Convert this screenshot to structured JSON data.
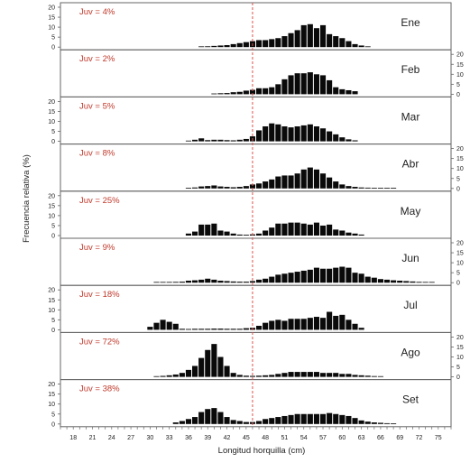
{
  "chart_data": [
    {
      "type": "bar",
      "panel_label": "Ene",
      "annotation": "Juv = 4%",
      "yticks": [
        "20",
        "15",
        "10",
        "5",
        "0"
      ],
      "ylim": [
        0,
        20
      ],
      "x": [
        38,
        39,
        40,
        41,
        42,
        43,
        44,
        45,
        46,
        47,
        48,
        49,
        50,
        51,
        52,
        53,
        54,
        55,
        56,
        57,
        58,
        59,
        60,
        61,
        62,
        63,
        64
      ],
      "values": [
        0.2,
        0.4,
        0.6,
        0.8,
        1.0,
        1.5,
        2.0,
        2.5,
        3.0,
        3.5,
        3.5,
        4.0,
        4.5,
        5.5,
        7.0,
        8.5,
        11.0,
        11.5,
        9.5,
        11.0,
        6.5,
        5.5,
        4.5,
        3.0,
        1.5,
        0.8,
        0.3
      ]
    },
    {
      "type": "bar",
      "panel_label": "Feb",
      "annotation": "Juv = 2%",
      "yticks": [
        "20",
        "15",
        "10",
        "5",
        "0"
      ],
      "ylim": [
        0,
        20
      ],
      "x": [
        40,
        41,
        42,
        43,
        44,
        45,
        46,
        47,
        48,
        49,
        50,
        51,
        52,
        53,
        54,
        55,
        56,
        57,
        58,
        59,
        60,
        61,
        62
      ],
      "values": [
        0.3,
        0.5,
        0.6,
        1.0,
        1.2,
        1.8,
        2.2,
        3.0,
        3.0,
        3.5,
        5.0,
        7.5,
        9.5,
        10.5,
        10.5,
        11.0,
        10.0,
        9.5,
        7.0,
        3.5,
        2.5,
        2.0,
        1.5
      ]
    },
    {
      "type": "bar",
      "panel_label": "Mar",
      "annotation": "Juv = 5%",
      "yticks": [
        "20",
        "15",
        "10",
        "5",
        "0"
      ],
      "ylim": [
        0,
        20
      ],
      "x": [
        36,
        37,
        38,
        39,
        40,
        41,
        42,
        43,
        44,
        45,
        46,
        47,
        48,
        49,
        50,
        51,
        52,
        53,
        54,
        55,
        56,
        57,
        58,
        59,
        60,
        61,
        62
      ],
      "values": [
        0.3,
        0.8,
        1.5,
        0.6,
        0.8,
        0.8,
        0.6,
        0.5,
        0.8,
        1.2,
        2.5,
        5.5,
        7.5,
        9.0,
        8.5,
        7.5,
        7.0,
        7.5,
        8.0,
        8.5,
        7.5,
        6.5,
        5.0,
        3.5,
        2.0,
        1.0,
        0.5
      ]
    },
    {
      "type": "bar",
      "panel_label": "Abr",
      "annotation": "Juv = 8%",
      "yticks": [
        "20",
        "15",
        "10",
        "5",
        "0"
      ],
      "ylim": [
        0,
        20
      ],
      "x": [
        36,
        37,
        38,
        39,
        40,
        41,
        42,
        43,
        44,
        45,
        46,
        47,
        48,
        49,
        50,
        51,
        52,
        53,
        54,
        55,
        56,
        57,
        58,
        59,
        60,
        61,
        62,
        63,
        64,
        65,
        66,
        67,
        68
      ],
      "values": [
        0.3,
        0.5,
        1.0,
        1.2,
        1.5,
        1.0,
        0.8,
        0.6,
        0.8,
        1.2,
        2.0,
        2.5,
        3.5,
        4.5,
        6.0,
        6.5,
        6.5,
        7.5,
        9.5,
        10.5,
        9.5,
        7.5,
        5.5,
        3.5,
        2.0,
        1.2,
        0.8,
        0.5,
        0.4,
        0.3,
        0.3,
        0.2,
        0.2
      ]
    },
    {
      "type": "bar",
      "panel_label": "May",
      "annotation": "Juv = 25%",
      "yticks": [
        "20",
        "15",
        "10",
        "5",
        "0"
      ],
      "ylim": [
        0,
        20
      ],
      "x": [
        36,
        37,
        38,
        39,
        40,
        41,
        42,
        43,
        44,
        45,
        46,
        47,
        48,
        49,
        50,
        51,
        52,
        53,
        54,
        55,
        56,
        57,
        58,
        59,
        60,
        61,
        62,
        63
      ],
      "values": [
        1.0,
        2.0,
        5.5,
        5.5,
        6.0,
        2.5,
        2.0,
        1.0,
        0.5,
        0.4,
        0.6,
        1.0,
        2.5,
        4.0,
        6.0,
        6.0,
        6.5,
        6.5,
        6.0,
        5.5,
        6.5,
        5.0,
        5.5,
        3.0,
        2.5,
        1.5,
        1.0,
        0.5
      ]
    },
    {
      "type": "bar",
      "panel_label": "Jun",
      "annotation": "Juv = 9%",
      "yticks": [
        "20",
        "15",
        "10",
        "5",
        "0"
      ],
      "ylim": [
        0,
        20
      ],
      "x": [
        31,
        32,
        33,
        34,
        35,
        36,
        37,
        38,
        39,
        40,
        41,
        42,
        43,
        44,
        45,
        46,
        47,
        48,
        49,
        50,
        51,
        52,
        53,
        54,
        55,
        56,
        57,
        58,
        59,
        60,
        61,
        62,
        63,
        64,
        65,
        66,
        67,
        68,
        69,
        70,
        71,
        72,
        73,
        74
      ],
      "values": [
        0.3,
        0.3,
        0.3,
        0.4,
        0.5,
        1.0,
        1.2,
        1.5,
        2.0,
        1.5,
        1.0,
        0.8,
        0.6,
        0.5,
        0.5,
        0.8,
        1.5,
        2.0,
        3.0,
        4.0,
        4.5,
        5.0,
        5.5,
        6.0,
        6.5,
        7.5,
        7.0,
        7.0,
        7.5,
        8.0,
        7.5,
        5.0,
        4.5,
        3.0,
        2.5,
        1.8,
        1.5,
        1.2,
        1.0,
        0.8,
        0.6,
        0.4,
        0.3,
        0.3
      ]
    },
    {
      "type": "bar",
      "panel_label": "Jul",
      "annotation": "Juv = 18%",
      "yticks": [
        "20",
        "15",
        "10",
        "5",
        "0"
      ],
      "ylim": [
        0,
        20
      ],
      "x": [
        30,
        31,
        32,
        33,
        34,
        35,
        36,
        37,
        38,
        39,
        40,
        41,
        42,
        43,
        44,
        45,
        46,
        47,
        48,
        49,
        50,
        51,
        52,
        53,
        54,
        55,
        56,
        57,
        58,
        59,
        60,
        61,
        62,
        63
      ],
      "values": [
        1.5,
        3.5,
        5.0,
        4.0,
        3.0,
        0.5,
        0.4,
        0.5,
        0.5,
        0.5,
        0.6,
        0.6,
        0.5,
        0.5,
        0.5,
        0.8,
        1.0,
        2.0,
        3.5,
        4.5,
        5.0,
        4.5,
        5.5,
        5.5,
        5.5,
        6.0,
        6.5,
        6.0,
        9.0,
        7.0,
        7.5,
        5.0,
        3.0,
        1.0
      ]
    },
    {
      "type": "bar",
      "panel_label": "Ago",
      "annotation": "Juv = 72%",
      "yticks": [
        "20",
        "15",
        "10",
        "5",
        "0"
      ],
      "ylim": [
        0,
        20
      ],
      "x": [
        31,
        32,
        33,
        34,
        35,
        36,
        37,
        38,
        39,
        40,
        41,
        42,
        43,
        44,
        45,
        46,
        47,
        48,
        49,
        50,
        51,
        52,
        53,
        54,
        55,
        56,
        57,
        58,
        59,
        60,
        61,
        62,
        63,
        64,
        65,
        66
      ],
      "values": [
        0.3,
        0.5,
        0.8,
        1.2,
        2.0,
        3.5,
        5.5,
        9.5,
        13.5,
        16.5,
        10.0,
        5.5,
        2.0,
        1.0,
        0.6,
        0.5,
        0.6,
        0.8,
        1.0,
        1.5,
        2.0,
        2.5,
        2.5,
        2.5,
        2.5,
        2.5,
        2.0,
        2.0,
        2.0,
        1.5,
        1.5,
        1.0,
        0.8,
        0.6,
        0.4,
        0.3
      ]
    },
    {
      "type": "bar",
      "panel_label": "Set",
      "annotation": "Juv = 38%",
      "yticks": [
        "20",
        "15",
        "10",
        "5",
        "0"
      ],
      "ylim": [
        0,
        20
      ],
      "x": [
        34,
        35,
        36,
        37,
        38,
        39,
        40,
        41,
        42,
        43,
        44,
        45,
        46,
        47,
        48,
        49,
        50,
        51,
        52,
        53,
        54,
        55,
        56,
        57,
        58,
        59,
        60,
        61,
        62,
        63,
        64,
        65,
        66,
        67,
        68
      ],
      "values": [
        0.8,
        1.5,
        2.5,
        3.5,
        6.0,
        7.5,
        8.0,
        6.0,
        3.5,
        2.0,
        1.5,
        1.0,
        1.0,
        1.5,
        2.5,
        3.0,
        3.5,
        4.0,
        4.5,
        5.0,
        5.0,
        5.0,
        5.0,
        5.0,
        5.5,
        5.0,
        4.5,
        4.0,
        3.0,
        1.8,
        1.2,
        0.8,
        0.6,
        0.4,
        0.3
      ]
    }
  ],
  "axes": {
    "xlabel": "Longitud horquilla (cm)",
    "ylabel": "Frecuencia relativa (%)",
    "xticks": [
      "18",
      "21",
      "24",
      "27",
      "30",
      "33",
      "36",
      "39",
      "42",
      "45",
      "48",
      "51",
      "54",
      "57",
      "60",
      "63",
      "66",
      "69",
      "72",
      "75"
    ],
    "xrange": [
      16,
      77
    ],
    "reference_line_x": 46
  },
  "colors": {
    "bar": "#0a0a0a",
    "annotation": "#c0392b",
    "reference_line": "#d9534f",
    "frame": "#666666",
    "text": "#222222"
  }
}
